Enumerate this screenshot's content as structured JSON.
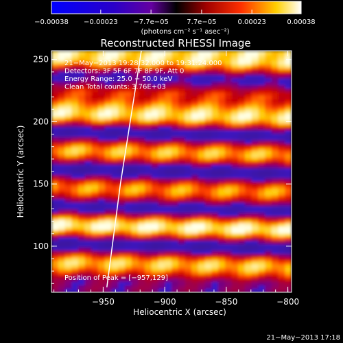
{
  "chart_data": {
    "type": "heatmap",
    "title": "Reconstructed RHESSI Image",
    "xlabel": "Heliocentric X (arcsec)",
    "ylabel": "Heliocentric Y (arcsec)",
    "xlim": [
      -992,
      -797
    ],
    "ylim": [
      63,
      257
    ],
    "xticks": [
      -950,
      -900,
      -850,
      -800
    ],
    "xtick_labels": [
      "−950",
      "−900",
      "−850",
      "−800"
    ],
    "yticks": [
      100,
      150,
      200,
      250
    ],
    "ytick_labels": [
      "100",
      "150",
      "200",
      "250"
    ],
    "colorbar": {
      "range": [
        -0.00038,
        0.00038
      ],
      "ticks": [
        -0.00038,
        -0.00023,
        -7.7e-05,
        7.7e-05,
        0.00023,
        0.00038
      ],
      "tick_labels": [
        "−0.00038",
        "−0.00023",
        "−7.7e−05",
        "7.7e−05",
        "0.00023",
        "0.00038"
      ],
      "units_label": "(photons cm⁻² s⁻¹ asec⁻²)"
    },
    "bands_y": [
      252,
      237,
      222,
      207,
      192,
      177,
      162,
      147,
      132,
      117,
      102,
      87,
      72
    ],
    "band_levels": [
      0.9,
      0.2,
      0.55,
      0.9,
      0.12,
      0.78,
      0.1,
      0.72,
      0.15,
      0.95,
      0.1,
      0.82,
      0.3
    ],
    "limb_line": [
      [
        -947,
        67
      ],
      [
        -936,
        150
      ],
      [
        -919,
        257
      ]
    ],
    "peak": [
      -957,
      129
    ],
    "annotations": [
      "21−May−2013 19:28:32.000 to 19:31:24.000",
      "Detectors: 3F 5F 6F 7F 8F 9F, Att 0",
      "Energy Range: 25.0 − 50.0 keV",
      "Clean     Total counts: 3.76E+03"
    ],
    "peak_label": "Position of Peak = [−957,129]",
    "grid": false
  },
  "footer": {
    "timestamp": "21−May−2013 17:18"
  }
}
